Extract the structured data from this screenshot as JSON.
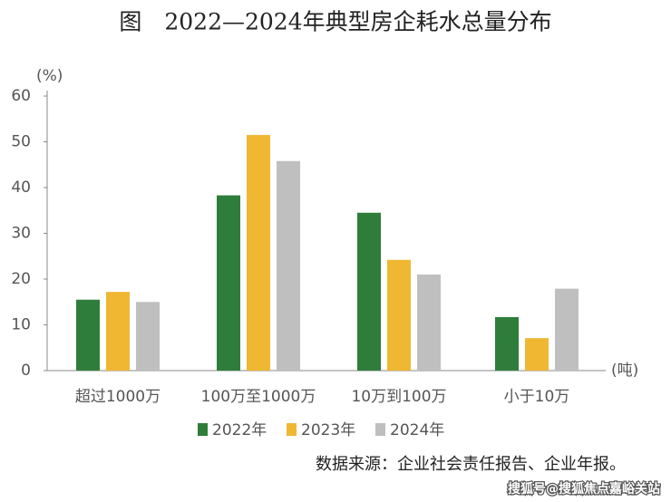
{
  "chart_data": {
    "type": "bar",
    "title": "图　2022—2024年典型房企耗水总量分布",
    "y_unit": "(%)",
    "x_unit": "(吨)",
    "categories": [
      "超过1000万",
      "100万至1000万",
      "10万到100万",
      "小于10万"
    ],
    "series": [
      {
        "name": "2022年",
        "color": "#2f7d3b",
        "values": [
          15.5,
          38.3,
          34.5,
          11.7
        ]
      },
      {
        "name": "2023年",
        "color": "#f0b733",
        "values": [
          17.2,
          51.5,
          24.2,
          7.1
        ]
      },
      {
        "name": "2024年",
        "color": "#bfbfbf",
        "values": [
          15.0,
          45.8,
          21.0,
          17.9
        ]
      }
    ],
    "ylim": [
      0,
      60
    ],
    "yticks": [
      0,
      10,
      20,
      30,
      40,
      50,
      60
    ],
    "grid": false,
    "source": "数据来源：企业社会责任报告、企业年报。",
    "watermark": "搜狐号@搜狐焦点嘉峪关站"
  }
}
